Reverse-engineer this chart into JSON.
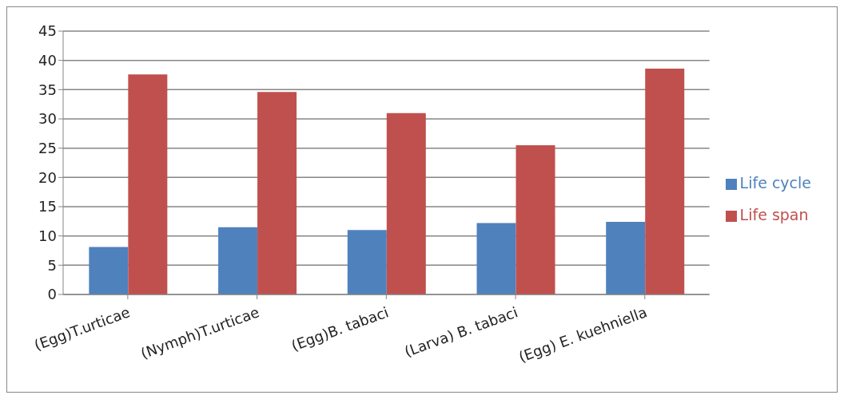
{
  "chart_data": {
    "type": "bar",
    "categories": [
      "(Egg)T.urticae",
      "(Nymph)T.urticae",
      "(Egg)B. tabaci",
      "(Larva) B. tabaci",
      "(Egg) E. kuehniella"
    ],
    "series": [
      {
        "name": "Life cycle",
        "color": "#4f81bd",
        "values": [
          8.1,
          11.5,
          11.0,
          12.2,
          12.4
        ]
      },
      {
        "name": "Life span",
        "color": "#c0504d",
        "values": [
          37.6,
          34.6,
          31.0,
          25.5,
          38.6
        ]
      }
    ],
    "ylim": [
      0,
      45
    ],
    "yticks": [
      0,
      5,
      10,
      15,
      20,
      25,
      30,
      35,
      40,
      45
    ],
    "grid": "y",
    "legend": "right"
  }
}
